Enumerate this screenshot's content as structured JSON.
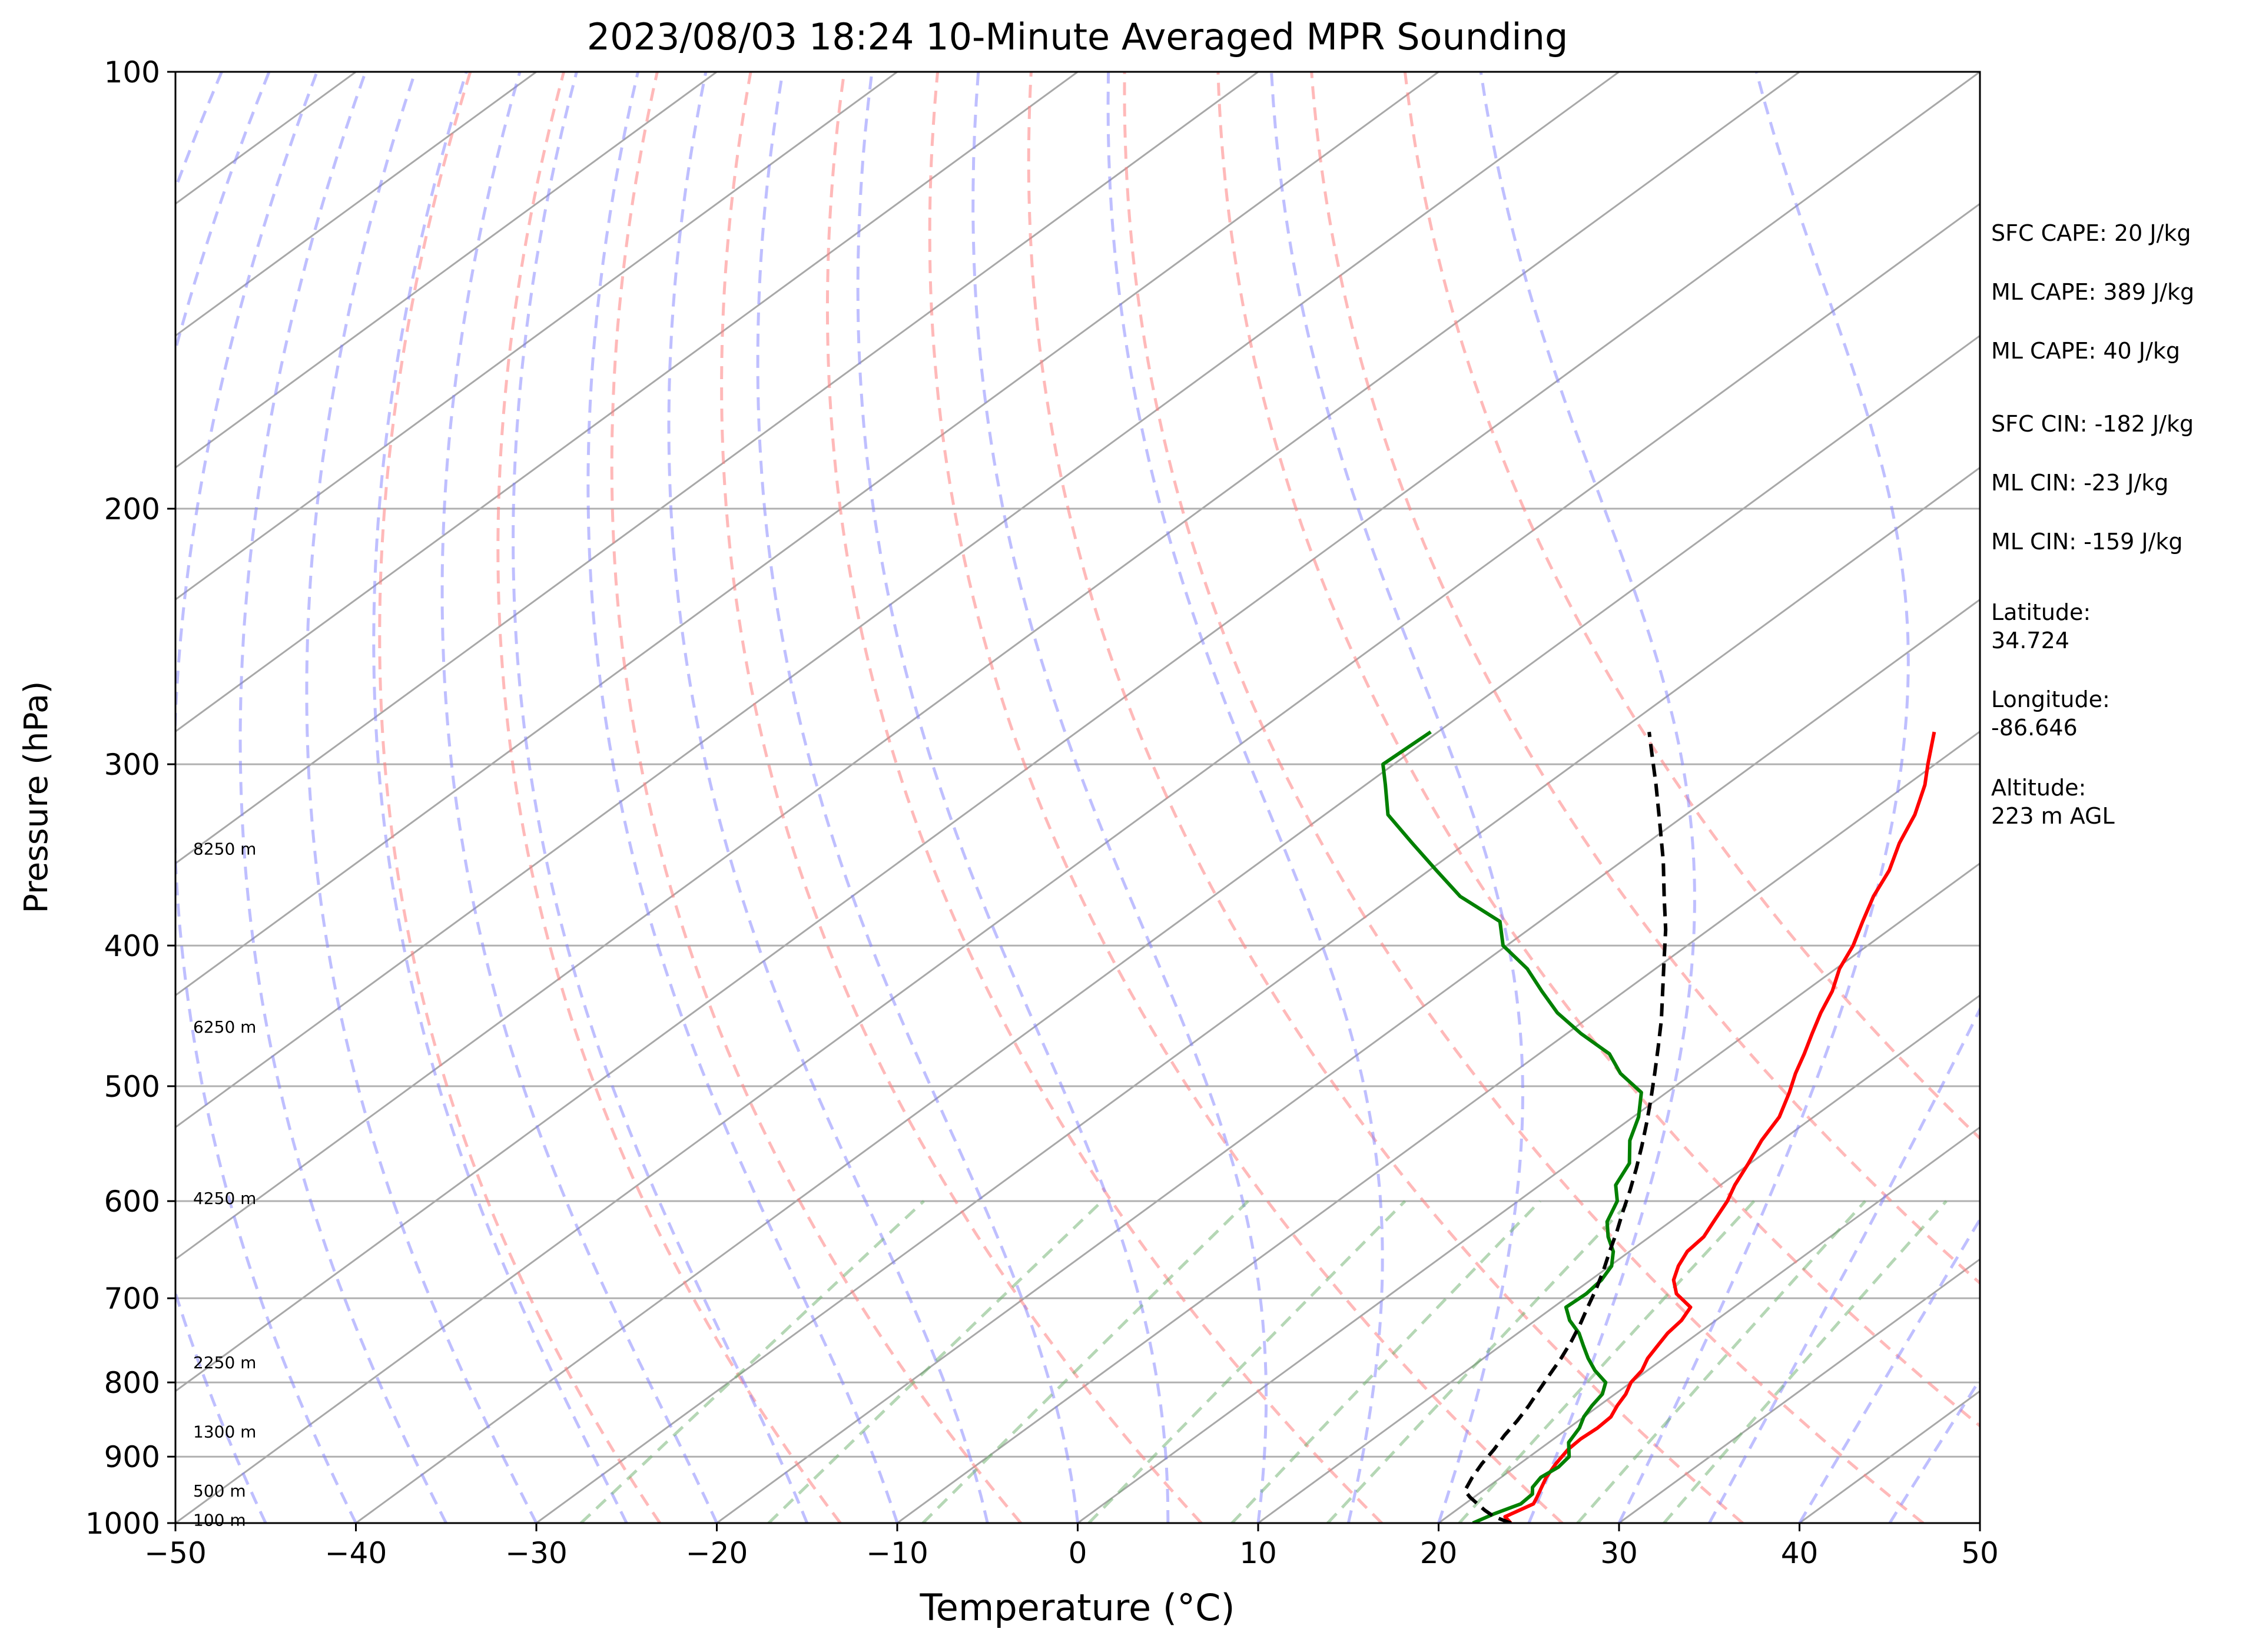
{
  "chart_data": {
    "type": "line",
    "title": "2023/08/03 18:24 10-Minute Averaged MPR Sounding",
    "xlabel": "Temperature (°C)",
    "ylabel": "Pressure (hPa)",
    "xlim": [
      -50,
      50
    ],
    "ylim": [
      1000,
      100
    ],
    "y_scale": "log",
    "xticks": [
      -50,
      -40,
      -30,
      -20,
      -10,
      0,
      10,
      20,
      30,
      40,
      50
    ],
    "xtick_labels": [
      "−50",
      "−40",
      "−30",
      "−20",
      "−10",
      "0",
      "10",
      "20",
      "30",
      "40",
      "50"
    ],
    "yticks": [
      1000,
      900,
      800,
      700,
      600,
      500,
      400,
      300,
      200,
      100
    ],
    "ytick_labels": [
      "1000",
      "900",
      "800",
      "700",
      "600",
      "500",
      "400",
      "300",
      "200",
      "100"
    ],
    "grid": "horizontal lines at each labelled pressure level",
    "isotherm_spacing": 10,
    "dry_adiabat_thetas": [
      250,
      260,
      270,
      280,
      290,
      300,
      310,
      320,
      330,
      340,
      350
    ],
    "moist_adiabat_starts": [
      -50,
      -45,
      -40,
      -35,
      -30,
      -25,
      -20,
      -15,
      -10,
      -5,
      0,
      5,
      10,
      15,
      20,
      25,
      30,
      35,
      40,
      45,
      50
    ],
    "mixing_ratio_lines": [
      0.4,
      1,
      2,
      4,
      7,
      10,
      16,
      24,
      32
    ],
    "series": [
      {
        "color": "#ff0000",
        "pressure": [
          1000,
          990,
          980,
          970,
          960,
          945,
          930,
          910,
          890,
          875,
          860,
          845,
          830,
          815,
          800,
          785,
          770,
          755,
          740,
          725,
          710,
          695,
          680,
          665,
          650,
          635,
          620,
          600,
          585,
          565,
          545,
          525,
          505,
          490,
          475,
          460,
          445,
          430,
          415,
          400,
          385,
          370,
          355,
          340,
          325,
          310,
          300,
          285
        ],
        "values": [
          24.0,
          23.2,
          23.5,
          23.8,
          23.5,
          23.0,
          22.5,
          22.0,
          21.6,
          21.5,
          21.6,
          21.5,
          21.0,
          20.6,
          20.0,
          19.7,
          19.1,
          18.7,
          18.3,
          18.1,
          17.6,
          15.8,
          14.6,
          13.8,
          13.2,
          13.0,
          12.4,
          11.6,
          10.8,
          9.9,
          8.9,
          8.1,
          6.8,
          5.7,
          4.7,
          3.6,
          2.5,
          1.5,
          0.2,
          -0.8,
          -2.1,
          -3.4,
          -4.5,
          -6.0,
          -7.3,
          -9.0,
          -10.4,
          -12.5
        ]
      },
      {
        "color": "#008000",
        "pressure": [
          1000,
          985,
          970,
          955,
          945,
          930,
          915,
          900,
          880,
          860,
          845,
          830,
          815,
          800,
          785,
          770,
          755,
          740,
          725,
          710,
          695,
          680,
          665,
          650,
          635,
          620,
          600,
          585,
          565,
          545,
          525,
          505,
          490,
          475,
          460,
          445,
          430,
          415,
          400,
          385,
          370,
          355,
          340,
          325,
          310,
          300,
          285
        ],
        "values": [
          21.9,
          22.4,
          23.1,
          23.0,
          22.5,
          22.2,
          22.4,
          22.2,
          21.1,
          20.6,
          20.0,
          19.6,
          19.3,
          18.6,
          17.1,
          15.8,
          14.6,
          13.4,
          11.9,
          10.7,
          10.8,
          10.6,
          10.1,
          9.1,
          7.7,
          6.5,
          5.5,
          4.2,
          3.3,
          1.6,
          0.3,
          -1.4,
          -4.0,
          -6.1,
          -9.2,
          -12.1,
          -14.6,
          -17.1,
          -20.2,
          -22.2,
          -26.3,
          -29.6,
          -33.0,
          -36.5,
          -38.9,
          -40.6,
          -40.4
        ]
      },
      {
        "color": "#000000",
        "style": "dashed",
        "pressure": [
          1000,
          990,
          980,
          970,
          960,
          950,
          930,
          910,
          890,
          870,
          850,
          830,
          810,
          790,
          770,
          750,
          730,
          710,
          690,
          670,
          650,
          630,
          610,
          590,
          570,
          550,
          530,
          510,
          490,
          470,
          450,
          430,
          410,
          390,
          370,
          350,
          330,
          310,
          295,
          285
        ],
        "values": [
          24.0,
          22.6,
          21.6,
          20.7,
          19.8,
          19.0,
          18.4,
          17.9,
          17.5,
          17.0,
          16.6,
          16.1,
          15.5,
          14.9,
          14.3,
          13.6,
          12.8,
          11.9,
          11.0,
          10.0,
          8.9,
          7.8,
          6.6,
          5.4,
          4.1,
          2.7,
          1.2,
          -0.4,
          -2.1,
          -3.9,
          -5.8,
          -7.9,
          -10.1,
          -12.4,
          -15.0,
          -17.7,
          -20.7,
          -23.9,
          -26.5,
          -28.3
        ]
      }
    ],
    "height_labels": [
      {
        "text": "100 m",
        "pressure": 995
      },
      {
        "text": "500 m",
        "pressure": 950
      },
      {
        "text": "1300 m",
        "pressure": 865
      },
      {
        "text": "2250 m",
        "pressure": 775
      },
      {
        "text": "4250 m",
        "pressure": 597
      },
      {
        "text": "6250 m",
        "pressure": 455
      },
      {
        "text": "8250 m",
        "pressure": 343
      }
    ],
    "annotations": [
      "SFC CAPE: 20 J/kg",
      "ML CAPE: 389 J/kg",
      "ML CAPE: 40 J/kg",
      "SFC CIN: -182 J/kg",
      "ML CIN: -23 J/kg",
      "ML CIN: -159 J/kg"
    ],
    "station": {
      "latitude_label": "Latitude:",
      "latitude": "34.724",
      "longitude_label": "Longitude:",
      "longitude": "-86.646",
      "altitude_label": "Altitude:",
      "altitude": "223 m AGL"
    }
  }
}
